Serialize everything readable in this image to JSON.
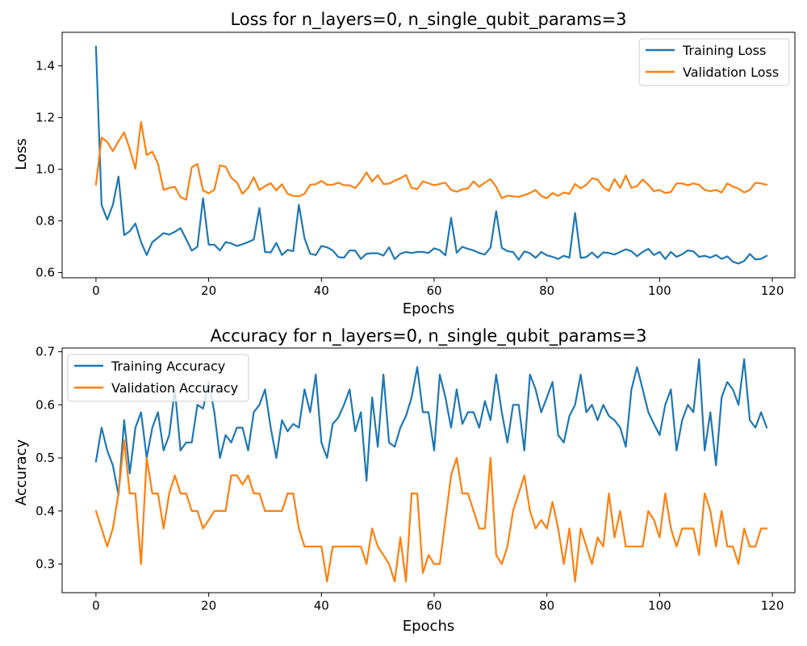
{
  "chart_data": [
    {
      "type": "line",
      "title": "Loss for n_layers=0, n_single_qubit_params=3",
      "xlabel": "Epochs",
      "ylabel": "Loss",
      "xlim": [
        -6,
        124
      ],
      "ylim": [
        0.58,
        1.53
      ],
      "xticks": [
        0,
        20,
        40,
        60,
        80,
        100,
        120
      ],
      "yticks": [
        0.6,
        0.8,
        1.0,
        1.2,
        1.4
      ],
      "ytick_labels": [
        "0.6",
        "0.8",
        "1.0",
        "1.2",
        "1.4"
      ],
      "legend": "top-right",
      "grid": false,
      "series": [
        {
          "name": "Training Loss",
          "color": "#1f77b4",
          "values": [
            1.475,
            0.862,
            0.805,
            0.862,
            0.972,
            0.745,
            0.76,
            0.79,
            0.718,
            0.668,
            0.718,
            0.735,
            0.753,
            0.747,
            0.758,
            0.772,
            0.73,
            0.685,
            0.7,
            0.888,
            0.708,
            0.708,
            0.686,
            0.718,
            0.713,
            0.703,
            0.71,
            0.718,
            0.728,
            0.85,
            0.68,
            0.678,
            0.715,
            0.668,
            0.688,
            0.683,
            0.863,
            0.733,
            0.673,
            0.668,
            0.703,
            0.698,
            0.686,
            0.66,
            0.658,
            0.686,
            0.685,
            0.653,
            0.673,
            0.675,
            0.675,
            0.666,
            0.698,
            0.652,
            0.673,
            0.68,
            0.676,
            0.68,
            0.68,
            0.676,
            0.694,
            0.687,
            0.667,
            0.812,
            0.677,
            0.7,
            0.692,
            0.686,
            0.676,
            0.67,
            0.697,
            0.838,
            0.696,
            0.683,
            0.68,
            0.65,
            0.682,
            0.675,
            0.657,
            0.68,
            0.667,
            0.661,
            0.653,
            0.665,
            0.658,
            0.831,
            0.657,
            0.66,
            0.678,
            0.658,
            0.678,
            0.676,
            0.67,
            0.68,
            0.69,
            0.683,
            0.663,
            0.68,
            0.692,
            0.668,
            0.68,
            0.653,
            0.68,
            0.661,
            0.671,
            0.686,
            0.682,
            0.661,
            0.665,
            0.658,
            0.668,
            0.653,
            0.663,
            0.642,
            0.635,
            0.645,
            0.672,
            0.651,
            0.653,
            0.665
          ]
        },
        {
          "name": "Validation Loss",
          "color": "#ff7f0e",
          "values": [
            0.94,
            1.123,
            1.106,
            1.07,
            1.108,
            1.143,
            1.078,
            1.002,
            1.183,
            1.055,
            1.068,
            1.022,
            0.92,
            0.928,
            0.932,
            0.892,
            0.882,
            1.008,
            1.02,
            0.918,
            0.907,
            0.92,
            1.015,
            1.01,
            0.967,
            0.949,
            0.905,
            0.928,
            0.969,
            0.92,
            0.935,
            0.946,
            0.918,
            0.942,
            0.905,
            0.897,
            0.895,
            0.905,
            0.94,
            0.942,
            0.955,
            0.94,
            0.94,
            0.948,
            0.938,
            0.938,
            0.927,
            0.953,
            0.988,
            0.952,
            0.977,
            0.943,
            0.944,
            0.956,
            0.965,
            0.978,
            0.928,
            0.923,
            0.953,
            0.946,
            0.938,
            0.943,
            0.948,
            0.92,
            0.913,
            0.922,
            0.926,
            0.953,
            0.932,
            0.948,
            0.962,
            0.932,
            0.888,
            0.898,
            0.895,
            0.893,
            0.9,
            0.908,
            0.92,
            0.897,
            0.888,
            0.908,
            0.897,
            0.91,
            0.905,
            0.943,
            0.926,
            0.94,
            0.965,
            0.96,
            0.93,
            0.916,
            0.962,
            0.928,
            0.976,
            0.928,
            0.935,
            0.96,
            0.94,
            0.915,
            0.92,
            0.908,
            0.912,
            0.945,
            0.945,
            0.938,
            0.945,
            0.94,
            0.92,
            0.915,
            0.92,
            0.91,
            0.945,
            0.933,
            0.925,
            0.91,
            0.92,
            0.948,
            0.945,
            0.94
          ]
        }
      ]
    },
    {
      "type": "line",
      "title": "Accuracy for n_layers=0, n_single_qubit_params=3",
      "xlabel": "Epochs",
      "ylabel": "Accuracy",
      "xlim": [
        -6,
        124
      ],
      "ylim": [
        0.246,
        0.707
      ],
      "xticks": [
        0,
        20,
        40,
        60,
        80,
        100,
        120
      ],
      "yticks": [
        0.3,
        0.4,
        0.5,
        0.6,
        0.7
      ],
      "ytick_labels": [
        "0.3",
        "0.4",
        "0.5",
        "0.6",
        "0.7"
      ],
      "legend": "top-left",
      "grid": false,
      "series": [
        {
          "name": "Training Accuracy",
          "color": "#1f77b4",
          "values": [
            0.493,
            0.557,
            0.514,
            0.486,
            0.43,
            0.571,
            0.471,
            0.557,
            0.586,
            0.5,
            0.557,
            0.586,
            0.514,
            0.543,
            0.629,
            0.514,
            0.529,
            0.529,
            0.6,
            0.593,
            0.643,
            0.586,
            0.5,
            0.543,
            0.529,
            0.557,
            0.557,
            0.514,
            0.586,
            0.6,
            0.629,
            0.557,
            0.5,
            0.571,
            0.55,
            0.564,
            0.557,
            0.629,
            0.586,
            0.657,
            0.529,
            0.5,
            0.564,
            0.576,
            0.6,
            0.629,
            0.55,
            0.586,
            0.457,
            0.614,
            0.521,
            0.657,
            0.529,
            0.521,
            0.557,
            0.579,
            0.614,
            0.671,
            0.586,
            0.586,
            0.514,
            0.657,
            0.614,
            0.557,
            0.629,
            0.564,
            0.586,
            0.586,
            0.557,
            0.607,
            0.571,
            0.657,
            0.586,
            0.529,
            0.6,
            0.6,
            0.514,
            0.657,
            0.629,
            0.586,
            0.614,
            0.643,
            0.543,
            0.529,
            0.579,
            0.6,
            0.657,
            0.586,
            0.6,
            0.571,
            0.6,
            0.579,
            0.571,
            0.557,
            0.521,
            0.629,
            0.671,
            0.629,
            0.586,
            0.564,
            0.543,
            0.6,
            0.629,
            0.514,
            0.571,
            0.6,
            0.586,
            0.686,
            0.514,
            0.586,
            0.486,
            0.614,
            0.643,
            0.629,
            0.6,
            0.686,
            0.571,
            0.557,
            0.586,
            0.557
          ]
        },
        {
          "name": "Validation Accuracy",
          "color": "#ff7f0e",
          "values": [
            0.4,
            0.367,
            0.333,
            0.367,
            0.433,
            0.533,
            0.433,
            0.433,
            0.3,
            0.5,
            0.433,
            0.433,
            0.367,
            0.433,
            0.467,
            0.433,
            0.433,
            0.4,
            0.4,
            0.367,
            0.383,
            0.4,
            0.4,
            0.4,
            0.467,
            0.467,
            0.45,
            0.467,
            0.433,
            0.433,
            0.4,
            0.4,
            0.4,
            0.4,
            0.433,
            0.433,
            0.367,
            0.333,
            0.333,
            0.333,
            0.333,
            0.267,
            0.333,
            0.333,
            0.333,
            0.333,
            0.333,
            0.333,
            0.3,
            0.367,
            0.333,
            0.317,
            0.3,
            0.267,
            0.35,
            0.267,
            0.433,
            0.433,
            0.283,
            0.317,
            0.3,
            0.3,
            0.383,
            0.467,
            0.5,
            0.433,
            0.433,
            0.4,
            0.367,
            0.367,
            0.5,
            0.317,
            0.3,
            0.333,
            0.4,
            0.433,
            0.467,
            0.4,
            0.367,
            0.383,
            0.367,
            0.417,
            0.367,
            0.3,
            0.367,
            0.267,
            0.367,
            0.333,
            0.3,
            0.35,
            0.333,
            0.433,
            0.35,
            0.4,
            0.333,
            0.333,
            0.333,
            0.333,
            0.4,
            0.383,
            0.35,
            0.433,
            0.367,
            0.333,
            0.367,
            0.367,
            0.367,
            0.317,
            0.433,
            0.4,
            0.333,
            0.4,
            0.333,
            0.333,
            0.3,
            0.367,
            0.333,
            0.333,
            0.367,
            0.367
          ]
        }
      ]
    }
  ]
}
